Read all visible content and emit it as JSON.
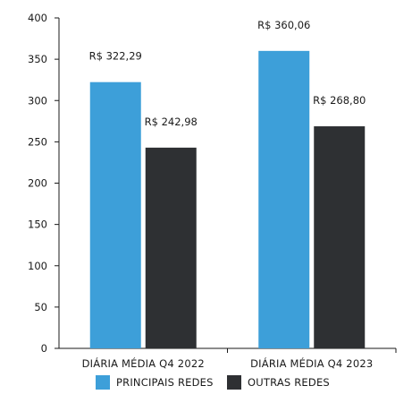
{
  "chart_data": {
    "type": "bar",
    "title": "",
    "xlabel": "",
    "ylabel": "",
    "categories": [
      "DIÁRIA MÉDIA Q4 2022",
      "DIÁRIA MÉDIA Q4 2023"
    ],
    "series": [
      {
        "name": "PRINCIPAIS REDES",
        "color": "#3d9fd9",
        "values": [
          322.29,
          360.06
        ],
        "labels": [
          "R$ 322,29",
          "R$ 360,06"
        ]
      },
      {
        "name": "OUTRAS REDES",
        "color": "#2e3033",
        "values": [
          242.98,
          268.8
        ],
        "labels": [
          "R$ 242,98",
          "R$ 268,80"
        ]
      }
    ],
    "ylim": [
      0,
      400
    ],
    "yticks": [
      0,
      50,
      100,
      150,
      200,
      250,
      300,
      350,
      400
    ],
    "grid": false,
    "legend_position": "bottom-center"
  }
}
